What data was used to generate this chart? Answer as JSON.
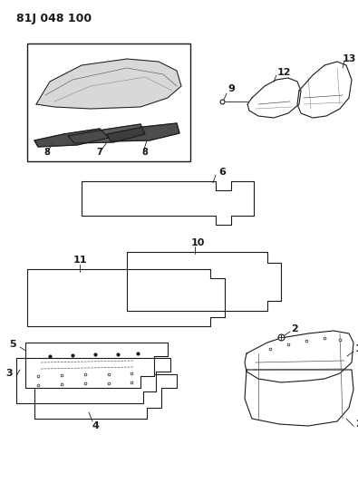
{
  "title": "81J 048 100",
  "bg_color": "#ffffff",
  "line_color": "#1a1a1a",
  "fig_w": 3.95,
  "fig_h": 5.33,
  "dpi": 100
}
